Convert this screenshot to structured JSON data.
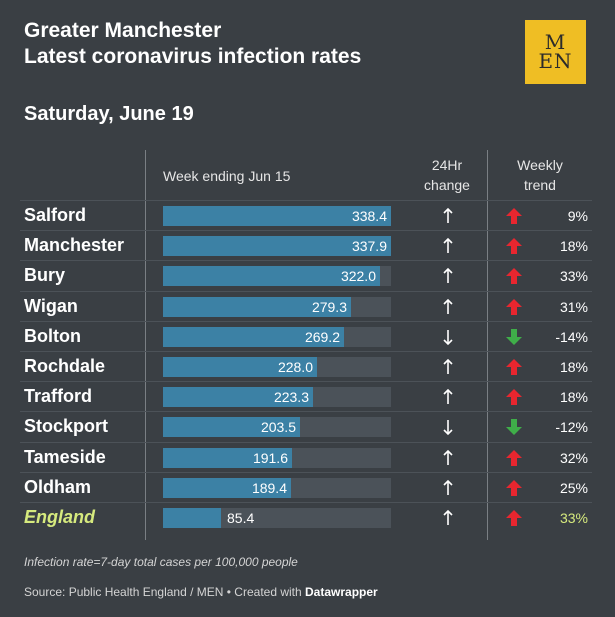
{
  "title": {
    "line1": "Greater Manchester",
    "line2": "Latest coronavirus infection rates"
  },
  "logo": {
    "line1": "M",
    "line2": "EN"
  },
  "date": "Saturday, June 19",
  "headers": {
    "week": "Week ending Jun 15",
    "change_line1": "24Hr",
    "change_line2": "change",
    "trend_line1": "Weekly",
    "trend_line2": "trend"
  },
  "chart_data": {
    "type": "bar",
    "title": "Latest coronavirus infection rates",
    "categories": [
      "Salford",
      "Manchester",
      "Bury",
      "Wigan",
      "Bolton",
      "Rochdale",
      "Trafford",
      "Stockport",
      "Tameside",
      "Oldham",
      "England"
    ],
    "values": [
      338.4,
      337.9,
      322.0,
      279.3,
      269.2,
      228.0,
      223.3,
      203.5,
      191.6,
      189.4,
      85.4
    ],
    "value_labels": [
      "338.4",
      "337.9",
      "322.0",
      "279.3",
      "269.2",
      "228.0",
      "223.3",
      "203.5",
      "191.6",
      "189.4",
      "85.4"
    ],
    "xlim": [
      0,
      338.4
    ],
    "xlabel": "Week ending Jun 15",
    "change_24hr": [
      "up",
      "up",
      "up",
      "up",
      "down",
      "up",
      "up",
      "down",
      "up",
      "up",
      "up"
    ],
    "weekly_trend": [
      "up",
      "up",
      "up",
      "up",
      "down",
      "up",
      "up",
      "down",
      "up",
      "up",
      "up"
    ],
    "weekly_trend_labels": [
      "9%",
      "18%",
      "33%",
      "31%",
      "-14%",
      "18%",
      "18%",
      "-12%",
      "32%",
      "25%",
      "33%"
    ],
    "highlight": "England"
  },
  "colors": {
    "background": "#3a3f44",
    "bar": "#3c81a5",
    "track": "#4b5259",
    "up": "#e8262f",
    "down": "#3fae49",
    "highlight": "#d6ea7e"
  },
  "footer": {
    "note": "Infection rate=7-day total cases per 100,000 people",
    "source_prefix": "Source: Public Health England / MEN • Created with ",
    "source_tool": "Datawrapper"
  }
}
